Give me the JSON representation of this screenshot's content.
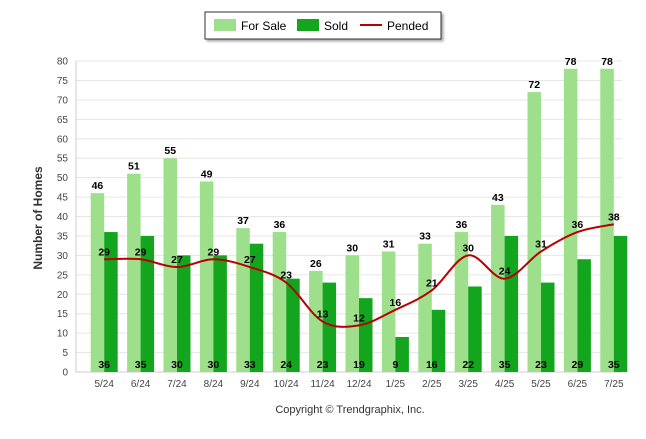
{
  "chart_data": {
    "type": "bar",
    "categories": [
      "5/24",
      "6/24",
      "7/24",
      "8/24",
      "9/24",
      "10/24",
      "11/24",
      "12/24",
      "1/25",
      "2/25",
      "3/25",
      "4/25",
      "5/25",
      "6/25",
      "7/25"
    ],
    "series": [
      {
        "name": "For Sale",
        "kind": "bar",
        "color": "#9ddf8a",
        "values": [
          46,
          51,
          55,
          49,
          37,
          36,
          26,
          30,
          31,
          33,
          36,
          43,
          72,
          78,
          78
        ]
      },
      {
        "name": "Sold",
        "kind": "bar",
        "color": "#13a51e",
        "values": [
          36,
          35,
          30,
          30,
          33,
          24,
          23,
          19,
          9,
          16,
          22,
          35,
          23,
          29,
          35
        ]
      },
      {
        "name": "Pended",
        "kind": "line",
        "color": "#b80000",
        "values": [
          29,
          29,
          27,
          29,
          27,
          23,
          13,
          12,
          16,
          21,
          30,
          24,
          31,
          36,
          38
        ]
      }
    ],
    "xlabel": "",
    "ylabel": "Number of Homes",
    "ylim": [
      0,
      80
    ],
    "yticks": [
      0,
      5,
      10,
      15,
      20,
      25,
      30,
      35,
      40,
      45,
      50,
      55,
      60,
      65,
      70,
      75,
      80
    ],
    "grid": true,
    "legend_position": "top-center",
    "credit": "Copyright © Trendgraphix, Inc."
  }
}
